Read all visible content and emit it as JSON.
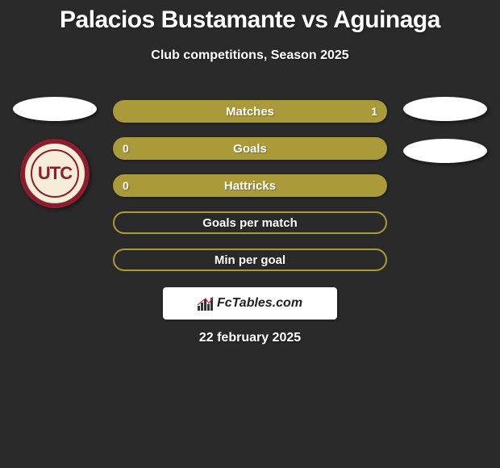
{
  "title": "Palacios Bustamante vs Aguinaga",
  "subtitle": "Club competitions, Season 2025",
  "date": "22 february 2025",
  "logo_text": "FcTables.com",
  "club_logo_text": "UTC",
  "colors": {
    "background": "#2a2a2a",
    "bar_fill": "#aa9a3a",
    "bar_text": "#ffffff",
    "club_ring": "#8c1d2e",
    "club_bg": "#f5edd8",
    "badge_bg": "#ffffff"
  },
  "bars": [
    {
      "label": "Matches",
      "left": "",
      "right": "1",
      "style": "fill"
    },
    {
      "label": "Goals",
      "left": "0",
      "right": "",
      "style": "fill"
    },
    {
      "label": "Hattricks",
      "left": "0",
      "right": "",
      "style": "fill"
    },
    {
      "label": "Goals per match",
      "left": "",
      "right": "",
      "style": "outline"
    },
    {
      "label": "Min per goal",
      "left": "",
      "right": "",
      "style": "outline"
    }
  ],
  "left_badges": {
    "ellipse_count": 1,
    "show_club_logo": true
  },
  "right_badges": {
    "ellipse_count": 2,
    "show_club_logo": false
  }
}
